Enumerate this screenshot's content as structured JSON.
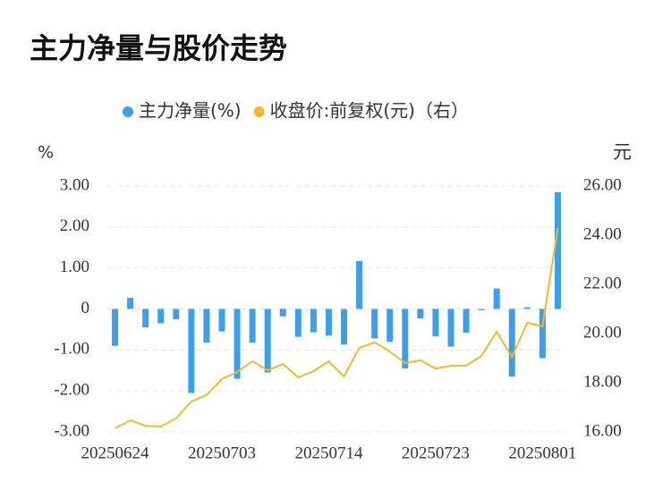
{
  "chart_data": {
    "type": "bar_line",
    "title": "主力净量与股价走势",
    "y_label": "%",
    "y2_label": "元",
    "categories": [
      "20250624",
      null,
      null,
      null,
      null,
      null,
      null,
      "20250703",
      null,
      null,
      null,
      null,
      null,
      null,
      "20250714",
      null,
      null,
      null,
      null,
      null,
      null,
      "20250723",
      null,
      null,
      null,
      null,
      null,
      null,
      "20250801",
      null
    ],
    "series": [
      {
        "name": "主力净量(%)",
        "color": "#3d9ee9",
        "type": "bar",
        "values": [
          -0.9,
          0.27,
          -0.45,
          -0.35,
          -0.25,
          -2.05,
          -0.82,
          -0.55,
          -1.7,
          -0.82,
          -1.55,
          -0.18,
          -0.68,
          -0.57,
          -0.65,
          -0.87,
          1.17,
          -0.72,
          -0.8,
          -1.45,
          -0.23,
          -0.67,
          -0.92,
          -0.58,
          -0.03,
          0.5,
          -1.65,
          0.04,
          -1.2,
          2.85
        ]
      },
      {
        "name": "收盘价:前复权(元)（右）",
        "color": "#f5b829",
        "type": "line",
        "axis": "y2",
        "values": [
          16.15,
          16.47,
          16.25,
          16.22,
          16.55,
          17.24,
          17.5,
          18.15,
          18.44,
          18.87,
          18.5,
          18.76,
          18.22,
          18.47,
          18.87,
          18.25,
          19.42,
          19.64,
          19.27,
          18.8,
          18.91,
          18.58,
          18.69,
          18.69,
          19.09,
          20.07,
          19.05,
          20.44,
          20.29,
          24.29
        ]
      }
    ],
    "ylim": [
      -3,
      3
    ],
    "yticks": [
      {
        "value": -3,
        "label": "-3.00"
      },
      {
        "value": -2,
        "label": "-2.00"
      },
      {
        "value": -1,
        "label": "-1.00"
      },
      0,
      {
        "value": 1,
        "label": "1.00"
      },
      {
        "value": 2,
        "label": "2.00"
      },
      {
        "value": 3,
        "label": "3.00"
      }
    ],
    "y2lim": [
      16,
      26
    ],
    "y2ticks": [
      {
        "value": 16,
        "label": "16.00"
      },
      {
        "value": 18,
        "label": "18.00"
      },
      {
        "value": 20,
        "label": "20.00"
      },
      {
        "value": 22,
        "label": "22.00"
      },
      {
        "value": 24,
        "label": "24.00"
      },
      {
        "value": 26,
        "label": "26.00"
      }
    ],
    "grid": true
  }
}
